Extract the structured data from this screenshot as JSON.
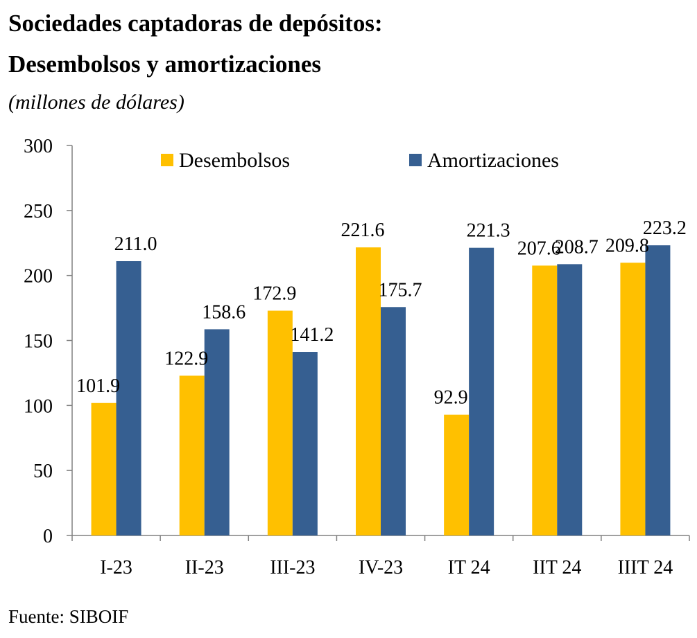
{
  "title_line1": "Sociedades captadoras de depósitos:",
  "title_line2": "Desembolsos y amortizaciones",
  "subtitle": "(millones de dólares)",
  "source": "Fuente:  SIBOIF",
  "colors": {
    "desembolsos": "#FFC000",
    "amortizaciones": "#365F91",
    "axis": "#808080"
  },
  "chart_data": {
    "type": "bar",
    "categories": [
      "I-23",
      "II-23",
      "III-23",
      "IV-23",
      "IT 24",
      "IIT 24",
      "IIIT 24"
    ],
    "series": [
      {
        "name": "Desembolsos",
        "values": [
          101.9,
          122.9,
          172.9,
          221.6,
          92.9,
          207.6,
          209.8
        ],
        "labels": [
          "101.9",
          "122.9",
          "172.9",
          "221.6",
          "92.9",
          "207.6",
          "209.8"
        ]
      },
      {
        "name": "Amortizaciones",
        "values": [
          211.0,
          158.6,
          141.2,
          175.7,
          221.3,
          208.7,
          223.2
        ],
        "labels": [
          "211.0",
          "158.6",
          "141.2",
          "175.7",
          "221.3",
          "208.7",
          "223.2"
        ]
      }
    ],
    "yticks": [
      "0",
      "50",
      "100",
      "150",
      "200",
      "250",
      "300"
    ],
    "ylim": [
      0,
      300
    ],
    "grid": false,
    "legend": "top-center"
  }
}
